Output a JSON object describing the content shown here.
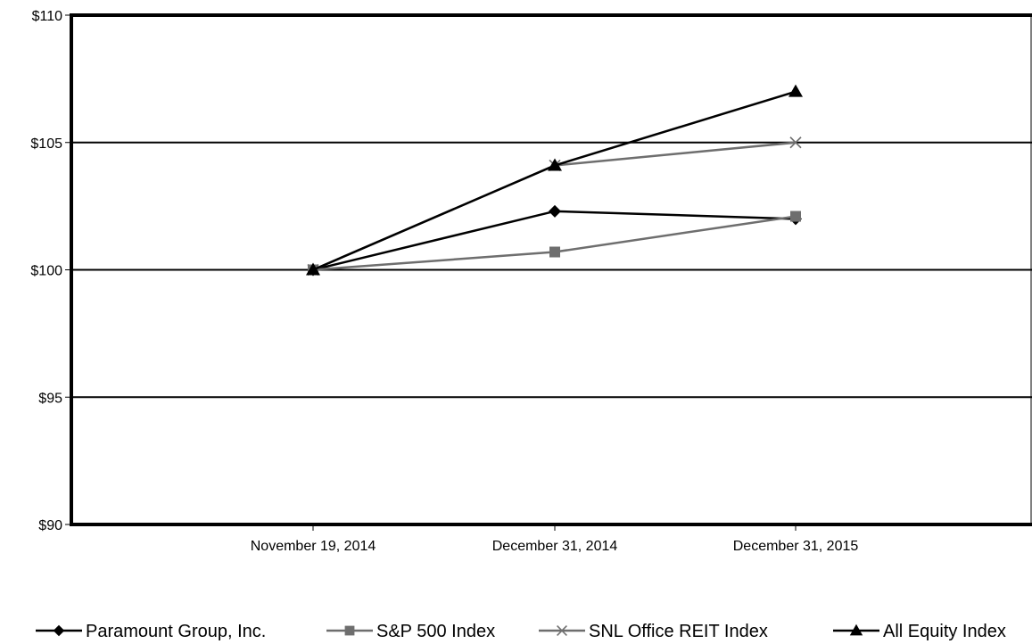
{
  "chart_data": {
    "type": "line",
    "title": "",
    "xlabel": "",
    "ylabel": "",
    "categories": [
      "November 19, 2014",
      "December 31, 2014",
      "December 31, 2015"
    ],
    "ylim": [
      90,
      110
    ],
    "y_ticks": [
      90,
      95,
      100,
      105,
      110
    ],
    "y_tick_labels": [
      "$90",
      "$95",
      "$100",
      "$105",
      "$110"
    ],
    "grid": true,
    "legend_position": "bottom",
    "series": [
      {
        "name": "Paramount Group, Inc.",
        "values": [
          100,
          102.3,
          102.0
        ],
        "marker": "diamond",
        "color": "#000000"
      },
      {
        "name": "S&P 500 Index",
        "values": [
          100,
          100.7,
          102.1
        ],
        "marker": "square",
        "color": "#6e6e6e"
      },
      {
        "name": "SNL Office REIT Index",
        "values": [
          100,
          104.1,
          105.0
        ],
        "marker": "x",
        "color": "#6e6e6e"
      },
      {
        "name": "All Equity Index",
        "values": [
          100,
          104.1,
          107.0
        ],
        "marker": "triangle",
        "color": "#000000"
      }
    ]
  }
}
